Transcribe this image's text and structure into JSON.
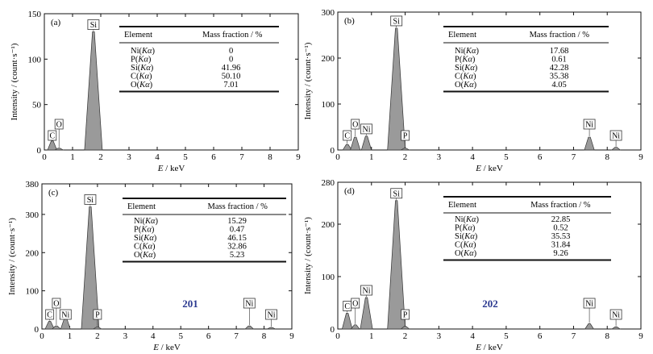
{
  "chart_data": [
    {
      "type": "bar",
      "panel_label": "(a)",
      "xlabel": "E / keV",
      "ylabel": "Intensity / (count·s⁻¹)",
      "xlim": [
        0,
        9
      ],
      "ylim": [
        0,
        150
      ],
      "x_ticks": [
        0,
        1,
        2,
        3,
        4,
        5,
        6,
        7,
        8,
        9
      ],
      "y_ticks": [
        0,
        50,
        100,
        150
      ],
      "x_tick_labels": [
        "0",
        "2",
        "4",
        "6",
        "8"
      ],
      "minor_x_ticks_labeled": [
        "1",
        "3",
        "5",
        "7",
        "9"
      ],
      "y_tick_labels": [
        "0",
        "50",
        "100",
        "150"
      ],
      "peaks": [
        {
          "label": "C",
          "x": 0.28,
          "y": 10
        },
        {
          "label": "O",
          "x": 0.52,
          "y": 2
        },
        {
          "label": "Si",
          "x": 1.74,
          "y": 130
        }
      ],
      "sample_label": "",
      "table": {
        "headers": [
          "Element",
          "Mass fraction / %"
        ],
        "rows": [
          [
            "Ni(Kα)",
            "0"
          ],
          [
            "P(Kα)",
            "0"
          ],
          [
            "Si(Kα)",
            "41.96"
          ],
          [
            "C(Kα)",
            "50.10"
          ],
          [
            "O(Kα)",
            "7.01"
          ]
        ]
      }
    },
    {
      "type": "bar",
      "panel_label": "(b)",
      "xlabel": "E / keV",
      "ylabel": "Intensity / (count·s⁻¹)",
      "xlim": [
        0,
        9
      ],
      "ylim": [
        0,
        300
      ],
      "x_tick_labels": [
        "0",
        "2",
        "4",
        "6",
        "8"
      ],
      "minor_x_ticks_labeled": [
        "1",
        "3",
        "5",
        "7",
        "9"
      ],
      "y_ticks": [
        0,
        100,
        200,
        300
      ],
      "y_tick_labels": [
        "0",
        "100",
        "200",
        "300"
      ],
      "peaks": [
        {
          "label": "C",
          "x": 0.28,
          "y": 12
        },
        {
          "label": "O",
          "x": 0.52,
          "y": 28
        },
        {
          "label": "Ni",
          "x": 0.85,
          "y": 30
        },
        {
          "label": "Si",
          "x": 1.74,
          "y": 265
        },
        {
          "label": "P",
          "x": 2.0,
          "y": 4
        },
        {
          "label": "Ni",
          "x": 7.47,
          "y": 28
        },
        {
          "label": "Ni",
          "x": 8.26,
          "y": 6
        }
      ],
      "sample_label": "",
      "table": {
        "headers": [
          "Element",
          "Mass fraction / %"
        ],
        "rows": [
          [
            "Ni(Kα)",
            "17.68"
          ],
          [
            "P(Kα)",
            "0.61"
          ],
          [
            "Si(Kα)",
            "42.28"
          ],
          [
            "C(Kα)",
            "35.38"
          ],
          [
            "O(Kα)",
            "4.05"
          ]
        ]
      }
    },
    {
      "type": "bar",
      "panel_label": "(c)",
      "xlabel": "E / keV",
      "ylabel": "Intensity / (count·s⁻¹)",
      "xlim": [
        0,
        9
      ],
      "ylim": [
        0,
        380
      ],
      "x_tick_labels": [
        "0",
        "2",
        "4",
        "6",
        "8"
      ],
      "minor_x_ticks_labeled": [
        "1",
        "3",
        "5",
        "7",
        "9"
      ],
      "y_ticks": [
        0,
        100,
        200,
        300,
        380
      ],
      "y_tick_labels": [
        "0",
        "100",
        "200",
        "300",
        "380"
      ],
      "peaks": [
        {
          "label": "C",
          "x": 0.28,
          "y": 20
        },
        {
          "label": "O",
          "x": 0.52,
          "y": 8
        },
        {
          "label": "Ni",
          "x": 0.85,
          "y": 30
        },
        {
          "label": "Si",
          "x": 1.74,
          "y": 320
        },
        {
          "label": "P",
          "x": 2.0,
          "y": 5
        },
        {
          "label": "Ni",
          "x": 7.47,
          "y": 8
        },
        {
          "label": "Ni",
          "x": 8.26,
          "y": 4
        }
      ],
      "sample_label": "201",
      "table": {
        "headers": [
          "Element",
          "Mass fraction / %"
        ],
        "rows": [
          [
            "Ni(Kα)",
            "15.29"
          ],
          [
            "P(Kα)",
            "0.47"
          ],
          [
            "Si(Kα)",
            "46.15"
          ],
          [
            "C(Kα)",
            "32.86"
          ],
          [
            "O(Kα)",
            "5.23"
          ]
        ]
      }
    },
    {
      "type": "bar",
      "panel_label": "(d)",
      "xlabel": "E / keV",
      "ylabel": "Intensity / (count·s⁻¹)",
      "xlim": [
        0,
        9
      ],
      "ylim": [
        0,
        280
      ],
      "x_tick_labels": [
        "0",
        "2",
        "4",
        "6",
        "8"
      ],
      "minor_x_ticks_labeled": [
        "1",
        "3",
        "5",
        "7",
        "9"
      ],
      "y_ticks": [
        0,
        100,
        200,
        280
      ],
      "y_tick_labels": [
        "0",
        "100",
        "200",
        "280"
      ],
      "peaks": [
        {
          "label": "C",
          "x": 0.28,
          "y": 30
        },
        {
          "label": "O",
          "x": 0.52,
          "y": 8
        },
        {
          "label": "Ni",
          "x": 0.85,
          "y": 60
        },
        {
          "label": "Si",
          "x": 1.74,
          "y": 245
        },
        {
          "label": "P",
          "x": 2.0,
          "y": 5
        },
        {
          "label": "Ni",
          "x": 7.47,
          "y": 10
        },
        {
          "label": "Ni",
          "x": 8.26,
          "y": 4
        }
      ],
      "sample_label": "202",
      "table": {
        "headers": [
          "Element",
          "Mass fraction / %"
        ],
        "rows": [
          [
            "Ni(Kα)",
            "22.85"
          ],
          [
            "P(Kα)",
            "0.52"
          ],
          [
            "Si(Kα)",
            "35.53"
          ],
          [
            "C(Kα)",
            "31.84"
          ],
          [
            "O(Kα)",
            "9.26"
          ]
        ]
      }
    }
  ],
  "style": {
    "peak_fill": "#9a9a9a",
    "peak_stroke": "#333333",
    "axis_color": "#111111",
    "sample_label_color": "#2b3990"
  }
}
